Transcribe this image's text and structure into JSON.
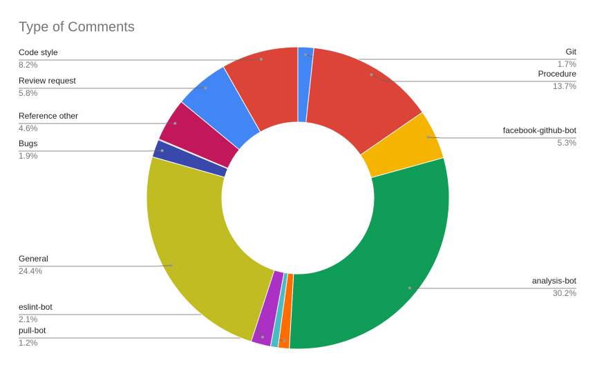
{
  "chart_data": {
    "type": "pie",
    "title": "Type of Comments",
    "hole": true,
    "categories": [
      "Git",
      "Procedure",
      "facebook-github-bot",
      "analysis-bot",
      "pull-bot",
      null,
      "eslint-bot",
      "General",
      "Bugs",
      null,
      "Reference other",
      "Review request",
      "Code style"
    ],
    "values": [
      1.7,
      13.7,
      5.3,
      30.2,
      1.2,
      0.8,
      2.1,
      24.4,
      1.9,
      0.1,
      4.6,
      5.8,
      8.2
    ],
    "value_labels": [
      "1.7%",
      "13.7%",
      "5.3%",
      "30.2%",
      "1.2%",
      null,
      "2.1%",
      "24.4%",
      "1.9%",
      null,
      "4.6%",
      "5.8%",
      "8.2%"
    ],
    "colors": [
      "#4285f4",
      "#db4437",
      "#f4b400",
      "#0f9d58",
      "#ff6d00",
      "#46bdc6",
      "#ab30c4",
      "#c0bc22",
      "#3949ab",
      "#5c3f8f",
      "#c2185b",
      "#4285f4",
      "#db4437"
    ]
  }
}
